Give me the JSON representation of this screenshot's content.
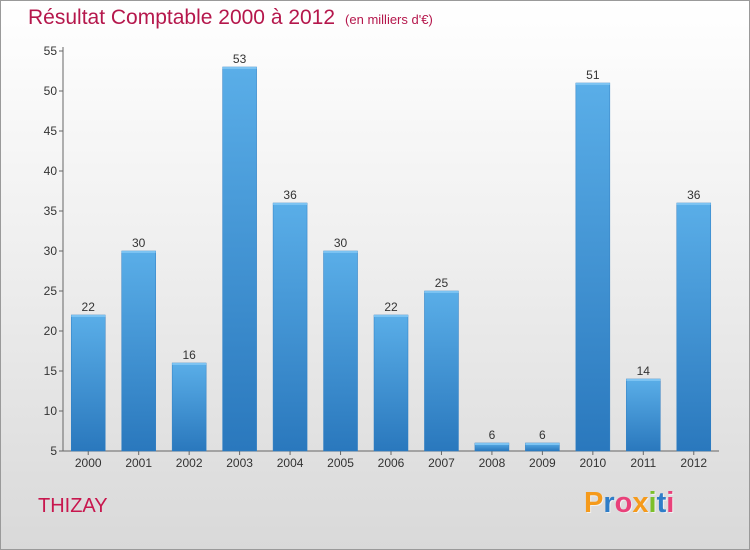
{
  "chart_data": {
    "type": "bar",
    "title": "Résultat Comptable 2000 à 2012",
    "subtitle": "(en milliers d'€)",
    "categories": [
      "2000",
      "2001",
      "2002",
      "2003",
      "2004",
      "2005",
      "2006",
      "2007",
      "2008",
      "2009",
      "2010",
      "2011",
      "2012"
    ],
    "values": [
      22,
      30,
      16,
      53,
      36,
      30,
      22,
      25,
      6,
      6,
      51,
      14,
      36
    ],
    "ylim": [
      5,
      55
    ],
    "yticks": [
      5,
      10,
      15,
      20,
      25,
      30,
      35,
      40,
      45,
      50,
      55
    ],
    "xlabel": "",
    "ylabel": "",
    "grid": false,
    "bar_color": "#3d8fd6"
  },
  "place": "THIZAY",
  "logo": {
    "letters": [
      "P",
      "r",
      "o",
      "x",
      "i",
      "t",
      "i"
    ],
    "colors": [
      "#f59a1b",
      "#2e7dc8",
      "#e9417a",
      "#f59a1b",
      "#7cbf2a",
      "#2e7dc8",
      "#e9417a"
    ]
  }
}
